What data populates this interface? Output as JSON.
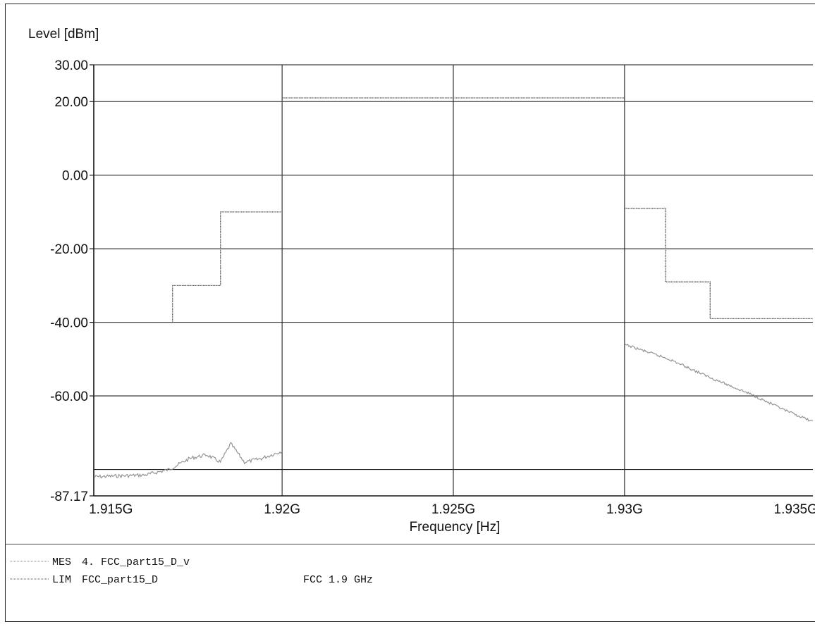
{
  "chart_data": {
    "type": "line",
    "title": "",
    "ylabel": "Level [dBm]",
    "xlabel": "Frequency [Hz]",
    "xlim": [
      1.9145,
      1.9355
    ],
    "ylim": [
      -87.17,
      30
    ],
    "x_unit_suffix": "G",
    "y_ticks": [
      30,
      20,
      0,
      -20,
      -40,
      -60,
      -87.17
    ],
    "y_tick_labels": [
      "30.00",
      "20.00",
      "0.00",
      "-20.00",
      "-40.00",
      "-60.00",
      "-87.17"
    ],
    "y_gridlines": [
      20,
      0,
      -20,
      -40,
      -60,
      -80
    ],
    "x_ticks": [
      1.915,
      1.92,
      1.925,
      1.93,
      1.935
    ],
    "x_tick_labels": [
      "1.915G",
      "1.92G",
      "1.925G",
      "1.93G",
      "1.935G"
    ],
    "x_gridlines": [
      1.92,
      1.925,
      1.93
    ],
    "grid": true,
    "series": [
      {
        "key": "lim",
        "style": "step",
        "segments": [
          [
            [
              1.9145,
              -40
            ],
            [
              1.9168,
              -40
            ],
            [
              1.9168,
              -30
            ],
            [
              1.9182,
              -30
            ],
            [
              1.9182,
              -10
            ],
            [
              1.92,
              -10
            ],
            [
              1.92,
              21
            ],
            [
              1.93,
              21
            ],
            [
              1.93,
              -9
            ],
            [
              1.9312,
              -9
            ],
            [
              1.9312,
              -29
            ],
            [
              1.9325,
              -29
            ],
            [
              1.9325,
              -39
            ],
            [
              1.9355,
              -39
            ]
          ]
        ]
      },
      {
        "key": "mes",
        "style": "noisy",
        "segments": [
          [
            [
              1.9145,
              -82
            ],
            [
              1.916,
              -81.5
            ],
            [
              1.9167,
              -80
            ],
            [
              1.9173,
              -77
            ],
            [
              1.9178,
              -76
            ],
            [
              1.9182,
              -78
            ],
            [
              1.9185,
              -73
            ],
            [
              1.9189,
              -78
            ],
            [
              1.9194,
              -77
            ],
            [
              1.92,
              -75
            ]
          ],
          [
            [
              1.93,
              -46
            ],
            [
              1.9313,
              -50
            ],
            [
              1.9325,
              -55
            ],
            [
              1.9338,
              -60
            ],
            [
              1.9347,
              -64
            ],
            [
              1.9355,
              -67
            ]
          ]
        ]
      }
    ],
    "legend": [
      {
        "code": "MES",
        "text": "4. FCC_part15_D_v",
        "extra": ""
      },
      {
        "code": "LIM",
        "text": "FCC_part15_D",
        "extra": "FCC 1.9 GHz"
      }
    ]
  },
  "colors": {
    "lim": "#555555",
    "mes": "#888888",
    "grid": "#222222",
    "axis": "#111111"
  }
}
